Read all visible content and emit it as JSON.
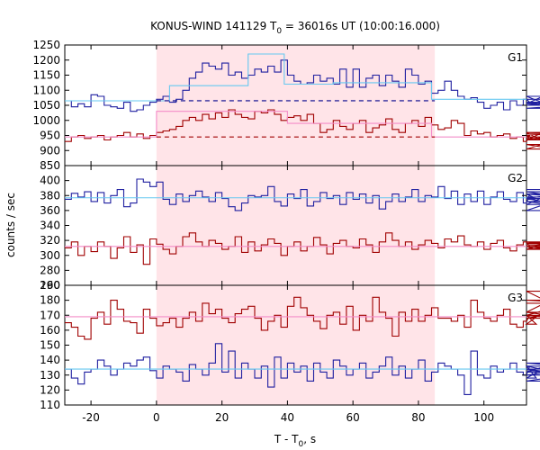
{
  "chart_data": {
    "type": "line",
    "title_main": "KONUS-WIND 141129 T",
    "title_sub": "0",
    "title_rest": " = 36016s UT (10:00:16.000)",
    "xlabel_main": "T - T",
    "xlabel_sub": "0",
    "xlabel_rest": ", s",
    "ylabel": "counts / sec",
    "xlim": [
      -28,
      113
    ],
    "xticks": [
      -20,
      0,
      20,
      40,
      60,
      80,
      100
    ],
    "shaded_interval": [
      0,
      85
    ],
    "colors": {
      "shade": "#ffe4e8",
      "blue": "#1f1fa0",
      "dark_red": "#a00000",
      "light_blue": "#66c8f0",
      "pink": "#f48cc8",
      "dark_blue_dashed": "#00008b",
      "red_dashed": "#a00000"
    },
    "panels": [
      {
        "name": "G1",
        "ylim": [
          850,
          1250
        ],
        "yticks": [
          850,
          900,
          950,
          1000,
          1050,
          1100,
          1150,
          1200,
          1250
        ],
        "series": [
          {
            "role": "blue-step",
            "x_start": -28,
            "step": 2,
            "values": [
              1065,
              1045,
              1055,
              1045,
              1085,
              1080,
              1050,
              1045,
              1040,
              1060,
              1030,
              1035,
              1050,
              1060,
              1070,
              1080,
              1060,
              1070,
              1100,
              1140,
              1160,
              1190,
              1180,
              1170,
              1190,
              1150,
              1160,
              1140,
              1150,
              1170,
              1160,
              1180,
              1160,
              1200,
              1150,
              1130,
              1120,
              1125,
              1150,
              1130,
              1140,
              1120,
              1170,
              1110,
              1170,
              1110,
              1140,
              1150,
              1115,
              1150,
              1130,
              1110,
              1170,
              1150,
              1120,
              1130,
              1090,
              1100,
              1130,
              1100,
              1080,
              1070,
              1075,
              1060,
              1040,
              1050,
              1060,
              1035,
              1065,
              1050,
              1070,
              1060,
              1055,
              1080,
              1050,
              1060,
              1040,
              1050,
              1060,
              1050,
              1070
            ]
          },
          {
            "role": "red-step",
            "x_start": -28,
            "step": 2,
            "values": [
              930,
              945,
              950,
              940,
              945,
              950,
              935,
              945,
              950,
              960,
              945,
              955,
              940,
              950,
              960,
              965,
              970,
              980,
              1000,
              1010,
              1000,
              1020,
              1005,
              1025,
              1010,
              1035,
              1020,
              1010,
              1005,
              1030,
              1025,
              1035,
              1020,
              1000,
              1010,
              1015,
              1000,
              1020,
              990,
              960,
              970,
              1000,
              980,
              970,
              990,
              1000,
              960,
              975,
              985,
              1005,
              970,
              960,
              990,
              1000,
              980,
              1010,
              985,
              970,
              975,
              1000,
              990,
              950,
              965,
              955,
              960,
              945,
              950,
              955,
              940,
              945,
              930,
              950,
              935,
              960,
              920,
              905,
              940,
              935,
              960,
              955,
              945
            ]
          },
          {
            "role": "blue-model",
            "points": [
              [
                -28,
                1065
              ],
              [
                4,
                1065
              ],
              [
                4,
                1115
              ],
              [
                28,
                1115
              ],
              [
                28,
                1220
              ],
              [
                39,
                1220
              ],
              [
                39,
                1120
              ],
              [
                54,
                1120
              ],
              [
                54,
                1125
              ],
              [
                84,
                1125
              ],
              [
                84,
                1070
              ],
              [
                113,
                1070
              ]
            ]
          },
          {
            "role": "red-model",
            "points": [
              [
                -28,
                945
              ],
              [
                0,
                945
              ],
              [
                0,
                1030
              ],
              [
                40,
                1030
              ],
              [
                40,
                990
              ],
              [
                84,
                990
              ],
              [
                84,
                945
              ],
              [
                113,
                945
              ]
            ]
          },
          {
            "role": "blue-background",
            "level": 1065,
            "range": [
              0,
              85
            ]
          },
          {
            "role": "red-background",
            "level": 945,
            "range": [
              0,
              85
            ]
          }
        ]
      },
      {
        "name": "G2",
        "ylim": [
          260,
          420
        ],
        "yticks": [
          260,
          280,
          300,
          320,
          340,
          360,
          380,
          400
        ],
        "series": [
          {
            "role": "blue-step",
            "x_start": -28,
            "step": 2,
            "values": [
              375,
              383,
              378,
              385,
              372,
              384,
              370,
              380,
              388,
              365,
              370,
              402,
              398,
              392,
              398,
              375,
              368,
              382,
              372,
              380,
              386,
              378,
              372,
              384,
              376,
              365,
              360,
              370,
              380,
              378,
              380,
              392,
              372,
              366,
              382,
              376,
              388,
              366,
              372,
              384,
              376,
              380,
              368,
              384,
              375,
              382,
              370,
              380,
              362,
              372,
              382,
              372,
              378,
              388,
              372,
              380,
              378,
              392,
              376,
              386,
              368,
              382,
              372,
              386,
              368,
              378,
              385,
              375,
              372,
              384,
              370,
              382,
              376,
              372,
              368,
              385,
              378,
              360,
              382,
              376,
              388
            ]
          },
          {
            "role": "red-step",
            "x_start": -28,
            "step": 2,
            "values": [
              310,
              318,
              300,
              312,
              305,
              318,
              312,
              296,
              310,
              325,
              304,
              314,
              288,
              322,
              315,
              308,
              302,
              312,
              325,
              330,
              318,
              312,
              320,
              316,
              308,
              312,
              325,
              304,
              318,
              306,
              314,
              322,
              316,
              300,
              312,
              318,
              306,
              312,
              324,
              314,
              302,
              316,
              320,
              312,
              310,
              322,
              314,
              304,
              318,
              330,
              320,
              312,
              318,
              308,
              314,
              320,
              316,
              310,
              322,
              318,
              326,
              314,
              312,
              318,
              308,
              316,
              320,
              310,
              306,
              314,
              318,
              312,
              308,
              316,
              318,
              312,
              308,
              314,
              312,
              308,
              314
            ]
          },
          {
            "role": "blue-model",
            "level": 377
          },
          {
            "role": "red-model",
            "level": 312
          }
        ]
      },
      {
        "name": "G3",
        "ylim": [
          110,
          190
        ],
        "yticks": [
          110,
          120,
          130,
          140,
          150,
          160,
          170,
          180,
          190
        ],
        "series": [
          {
            "role": "red-step",
            "x_start": -28,
            "step": 2,
            "values": [
              165,
              162,
              156,
              154,
              168,
              172,
              164,
              180,
              174,
              166,
              165,
              158,
              174,
              168,
              163,
              165,
              168,
              162,
              168,
              172,
              166,
              178,
              171,
              174,
              168,
              165,
              171,
              174,
              176,
              168,
              160,
              166,
              170,
              162,
              176,
              182,
              175,
              170,
              166,
              161,
              170,
              172,
              164,
              176,
              160,
              170,
              166,
              182,
              172,
              168,
              156,
              172,
              166,
              174,
              166,
              170,
              175,
              168,
              168,
              166,
              170,
              162,
              180,
              172,
              168,
              166,
              170,
              174,
              164,
              162,
              166,
              170,
              164,
              172,
              170,
              168,
              172,
              186,
              170,
              180,
              178
            ]
          },
          {
            "role": "blue-step",
            "x_start": -28,
            "step": 2,
            "values": [
              134,
              128,
              124,
              132,
              134,
              140,
              136,
              130,
              134,
              138,
              136,
              140,
              142,
              133,
              128,
              136,
              134,
              132,
              126,
              137,
              134,
              130,
              138,
              151,
              132,
              146,
              128,
              138,
              134,
              128,
              136,
              122,
              142,
              128,
              138,
              132,
              136,
              126,
              138,
              132,
              128,
              140,
              136,
              130,
              134,
              138,
              128,
              132,
              136,
              142,
              130,
              136,
              128,
              134,
              140,
              126,
              132,
              138,
              136,
              134,
              130,
              117,
              146,
              130,
              128,
              136,
              132,
              134,
              138,
              132,
              130,
              136,
              128,
              134,
              132,
              138,
              136,
              130,
              134,
              126,
              132
            ]
          },
          {
            "role": "blue-model",
            "level": 134
          },
          {
            "role": "red-model",
            "level": 169
          }
        ]
      }
    ]
  }
}
